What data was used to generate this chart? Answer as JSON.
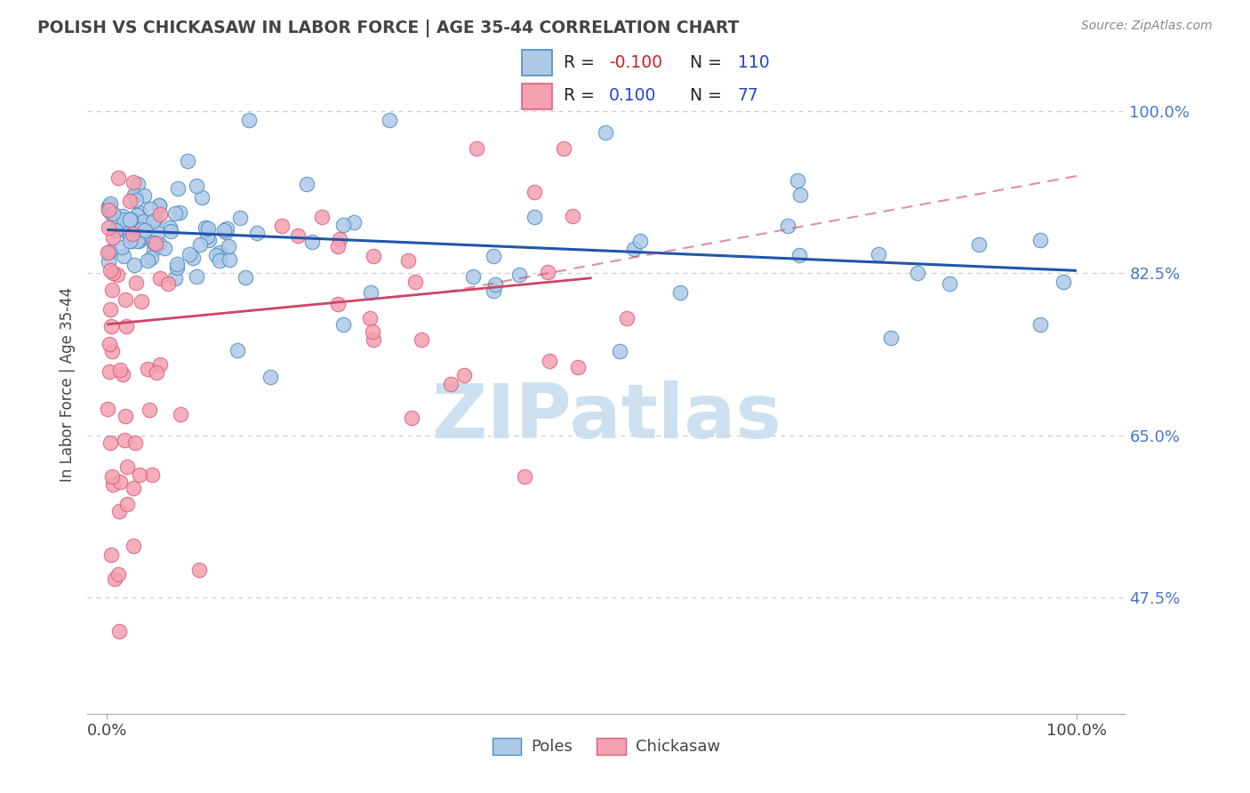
{
  "title": "POLISH VS CHICKASAW IN LABOR FORCE | AGE 35-44 CORRELATION CHART",
  "source": "Source: ZipAtlas.com",
  "ylabel": "In Labor Force | Age 35-44",
  "legend_blue_R": "-0.100",
  "legend_blue_N": "110",
  "legend_pink_R": "0.100",
  "legend_pink_N": "77",
  "blue_fill": "#aec8e8",
  "blue_edge": "#4a90c4",
  "pink_fill": "#f4a0b0",
  "pink_edge": "#d96080",
  "blue_line_color": "#2255aa",
  "pink_line_color": "#cc4466",
  "ytick_color": "#4477cc",
  "watermark_color": "#cce0f0",
  "grid_color": "#cccccc",
  "title_color": "#444444",
  "source_color": "#888888",
  "blue_trend": [
    0.872,
    0.828
  ],
  "pink_trend_solid": [
    0.77,
    0.82
  ],
  "pink_trend_dash_start": 0.35,
  "pink_trend_dash": [
    0.796,
    0.93
  ],
  "yticks": [
    0.475,
    0.65,
    0.825,
    1.0
  ],
  "ytick_labels": [
    "47.5%",
    "65.0%",
    "82.5%",
    "100.0%"
  ],
  "xlim": [
    -0.02,
    1.05
  ],
  "ylim": [
    0.35,
    1.06
  ]
}
